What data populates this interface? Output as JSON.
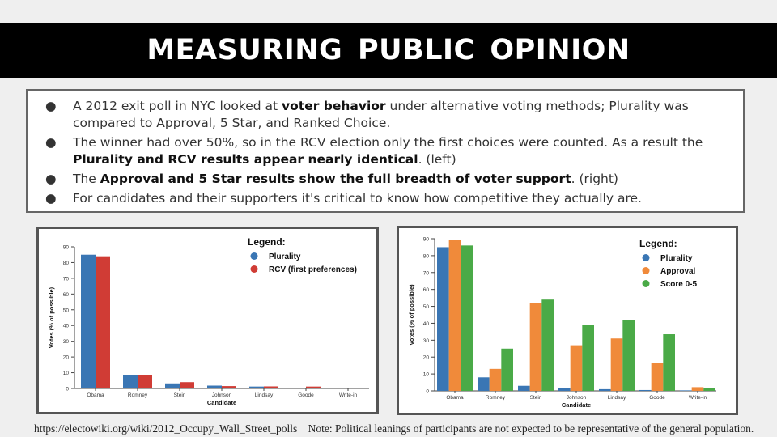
{
  "title": "MEASURING  PUBLIC  OPINION",
  "bullets": [
    {
      "segments": [
        {
          "t": "A 2012 exit poll in NYC looked at ",
          "b": false
        },
        {
          "t": "voter behavior",
          "b": true
        },
        {
          "t": " under alternative voting methods; Plurality was compared to Approval, 5 Star, and Ranked Choice.",
          "b": false
        }
      ]
    },
    {
      "segments": [
        {
          "t": "The winner had over 50%, so in the RCV election only the first choices were counted. As a result the ",
          "b": false
        },
        {
          "t": "Plurality and RCV results appear nearly identical",
          "b": true
        },
        {
          "t": ". (left)",
          "b": false
        }
      ]
    },
    {
      "segments": [
        {
          "t": "The ",
          "b": false
        },
        {
          "t": "Approval and 5 Star results show the full breadth of voter support",
          "b": true
        },
        {
          "t": ". (right)",
          "b": false
        }
      ]
    },
    {
      "segments": [
        {
          "t": "For candidates and their supporters it's critical to know how competitive they actually are.",
          "b": false
        }
      ]
    }
  ],
  "bullet_glyph": "●",
  "footer": {
    "source": "https://electowiki.org/wiki/2012_Occupy_Wall_Street_polls",
    "note": "Note: Political leanings of participants are not expected to be representative of the general population."
  },
  "chart_data": [
    {
      "type": "bar",
      "categories": [
        "Obama",
        "Romney",
        "Stein",
        "Johnson",
        "Lindsay",
        "Goode",
        "Write-in"
      ],
      "series": [
        {
          "name": "Plurality",
          "color": "#3a76b4",
          "values": [
            85,
            8.5,
            3.2,
            1.8,
            1.2,
            0.5,
            0.3
          ]
        },
        {
          "name": "RCV (first preferences)",
          "color": "#d03c35",
          "values": [
            84,
            8.5,
            4,
            1.5,
            1.3,
            1.2,
            0.4
          ]
        }
      ],
      "legend_title": "Legend:",
      "legend_position": "top-right",
      "xlabel": "Candidate",
      "ylabel": "Votes (% of possible)",
      "ylim": [
        0,
        90
      ],
      "yticks": [
        0,
        10,
        20,
        30,
        40,
        50,
        60,
        70,
        80,
        90
      ],
      "grid": false
    },
    {
      "type": "bar",
      "categories": [
        "Obama",
        "Romney",
        "Stein",
        "Johnson",
        "Lindsay",
        "Goode",
        "Write-in"
      ],
      "series": [
        {
          "name": "Plurality",
          "color": "#3a76b4",
          "values": [
            85,
            8,
            3,
            1.8,
            1,
            0.5,
            0.3
          ]
        },
        {
          "name": "Approval",
          "color": "#f08a3a",
          "values": [
            89.5,
            13,
            52,
            27,
            31,
            16.5,
            2.2
          ]
        },
        {
          "name": "Score 0-5",
          "color": "#4aaa47",
          "values": [
            86,
            25,
            54,
            39,
            42,
            33.5,
            1.7
          ]
        }
      ],
      "legend_title": "Legend:",
      "legend_position": "top-right",
      "xlabel": "Candidate",
      "ylabel": "Votes (% of possible)",
      "ylim": [
        0,
        90
      ],
      "yticks": [
        0,
        10,
        20,
        30,
        40,
        50,
        60,
        70,
        80,
        90
      ],
      "grid": false
    }
  ]
}
